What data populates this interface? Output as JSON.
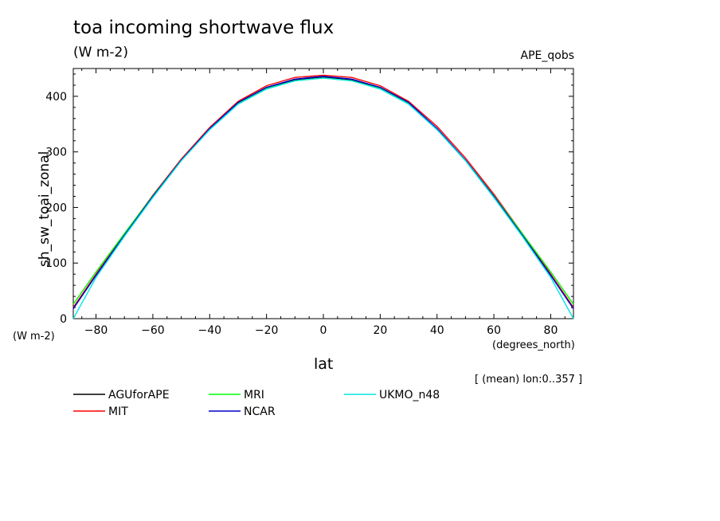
{
  "header": {
    "title": "toa incoming shortwave flux",
    "units": "(W m-2)",
    "dataset": "APE_qobs"
  },
  "footer_note": "[ (mean) lon:0..357 ]",
  "chart_data": {
    "type": "line",
    "title": "toa incoming shortwave flux",
    "subtitle": "(W m-2)",
    "xlabel": "lat",
    "xunits": "(degrees_north)",
    "ylabel": "sh_sw_toai_zonal",
    "yunits": "(W m-2)",
    "xlim": [
      -88,
      88
    ],
    "ylim": [
      0,
      450
    ],
    "xticks": [
      -80,
      -60,
      -40,
      -20,
      0,
      20,
      40,
      60,
      80
    ],
    "yticks": [
      0,
      100,
      200,
      300,
      400
    ],
    "legend_position": "bottom",
    "grid": false,
    "x": [
      -88,
      -80,
      -70,
      -60,
      -50,
      -40,
      -30,
      -20,
      -10,
      0,
      10,
      20,
      30,
      40,
      50,
      60,
      70,
      80,
      88
    ],
    "series": [
      {
        "name": "AGUforAPE",
        "color": "#000000",
        "values": [
          18,
          78,
          150,
          220,
          285,
          342,
          388,
          415,
          430,
          435,
          430,
          415,
          388,
          342,
          285,
          220,
          150,
          78,
          18
        ]
      },
      {
        "name": "MIT",
        "color": "#ff0000",
        "values": [
          20,
          80,
          152,
          222,
          287,
          344,
          391,
          419,
          434,
          438,
          434,
          419,
          391,
          346,
          289,
          224,
          153,
          80,
          20
        ]
      },
      {
        "name": "MRI",
        "color": "#00ff00",
        "values": [
          26,
          84,
          153,
          221,
          285,
          341,
          387,
          414,
          428,
          433,
          428,
          414,
          387,
          341,
          285,
          221,
          153,
          84,
          26
        ]
      },
      {
        "name": "NCAR",
        "color": "#0000cc",
        "values": [
          18,
          78,
          150,
          220,
          285,
          342,
          389,
          416,
          431,
          436,
          431,
          416,
          389,
          342,
          285,
          220,
          150,
          78,
          18
        ]
      },
      {
        "name": "UKMO_n48",
        "color": "#00e5e5",
        "values": [
          0,
          74,
          148,
          218,
          284,
          340,
          386,
          413,
          428,
          433,
          428,
          413,
          386,
          340,
          284,
          218,
          148,
          74,
          0
        ]
      }
    ]
  }
}
